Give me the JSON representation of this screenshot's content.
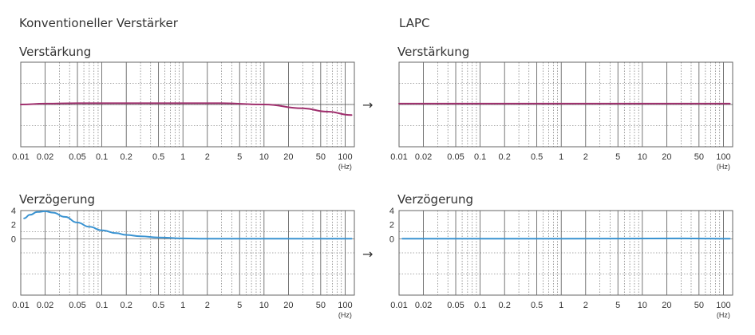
{
  "titles": {
    "left": "Konventioneller Verstärker",
    "right": "LAPC"
  },
  "arrow": "→",
  "colors": {
    "gain": "#a0306e",
    "delay": "#3a93d1",
    "grid": "#555555",
    "frame": "#666666"
  },
  "chart_data": [
    {
      "id": "conv-gain",
      "type": "line",
      "title": "Verstärkung",
      "xlabel": "",
      "ylabel": "",
      "x_scale": "log",
      "xlim": [
        0.01,
        130
      ],
      "x_ticks": [
        "0.01",
        "0.02",
        "0.05",
        "0.1",
        "0.2",
        "0.5",
        "1",
        "2",
        "5",
        "10",
        "20",
        "50",
        "100"
      ],
      "x_unit": "(Hz)",
      "ylim": [
        -1,
        1
      ],
      "y_ticks": [],
      "grid": true,
      "series": [
        {
          "color": "#a0306e",
          "x": [
            0.01,
            0.02,
            0.05,
            0.1,
            0.3,
            1,
            3,
            10,
            30,
            60,
            120
          ],
          "y": [
            0.0,
            0.02,
            0.03,
            0.03,
            0.03,
            0.03,
            0.03,
            0.0,
            -0.09,
            -0.17,
            -0.25
          ]
        }
      ]
    },
    {
      "id": "lapc-gain",
      "type": "line",
      "title": "Verstärkung",
      "xlabel": "",
      "ylabel": "",
      "x_scale": "log",
      "xlim": [
        0.01,
        130
      ],
      "x_ticks": [
        "0.01",
        "0.02",
        "0.05",
        "0.1",
        "0.2",
        "0.5",
        "1",
        "2",
        "5",
        "10",
        "20",
        "50",
        "100"
      ],
      "x_unit": "(Hz)",
      "ylim": [
        -1,
        1
      ],
      "y_ticks": [],
      "grid": true,
      "series": [
        {
          "color": "#a0306e",
          "x": [
            0.01,
            120
          ],
          "y": [
            0.02,
            0.02
          ]
        }
      ]
    },
    {
      "id": "conv-delay",
      "type": "line",
      "title": "Verzögerung",
      "xlabel": "",
      "ylabel": "",
      "x_scale": "log",
      "xlim": [
        0.01,
        130
      ],
      "x_ticks": [
        "0.01",
        "0.02",
        "0.05",
        "0.1",
        "0.2",
        "0.5",
        "1",
        "2",
        "5",
        "10",
        "20",
        "50",
        "100"
      ],
      "x_unit": "(Hz)",
      "ylim": [
        -8,
        4
      ],
      "y_ticks": [
        "4",
        "2",
        "0"
      ],
      "grid": true,
      "series": [
        {
          "color": "#3a93d1",
          "x": [
            0.011,
            0.013,
            0.016,
            0.02,
            0.025,
            0.035,
            0.05,
            0.07,
            0.1,
            0.15,
            0.2,
            0.3,
            0.5,
            1,
            2,
            5,
            10,
            30,
            100,
            120
          ],
          "y": [
            2.9,
            3.4,
            3.8,
            3.9,
            3.7,
            3.1,
            2.3,
            1.7,
            1.2,
            0.8,
            0.55,
            0.35,
            0.18,
            0.05,
            0.0,
            0.0,
            0.0,
            0.0,
            0.0,
            0.0
          ]
        }
      ]
    },
    {
      "id": "lapc-delay",
      "type": "line",
      "title": "Verzögerung",
      "xlabel": "",
      "ylabel": "",
      "x_scale": "log",
      "xlim": [
        0.01,
        130
      ],
      "x_ticks": [
        "0.01",
        "0.02",
        "0.05",
        "0.1",
        "0.2",
        "0.5",
        "1",
        "2",
        "5",
        "10",
        "20",
        "50",
        "100"
      ],
      "x_unit": "(Hz)",
      "ylim": [
        -8,
        4
      ],
      "y_ticks": [
        "4",
        "2",
        "0"
      ],
      "grid": true,
      "series": [
        {
          "color": "#3a93d1",
          "x": [
            0.011,
            1,
            30,
            120
          ],
          "y": [
            0.0,
            0.0,
            0.05,
            0.0
          ]
        }
      ]
    }
  ]
}
